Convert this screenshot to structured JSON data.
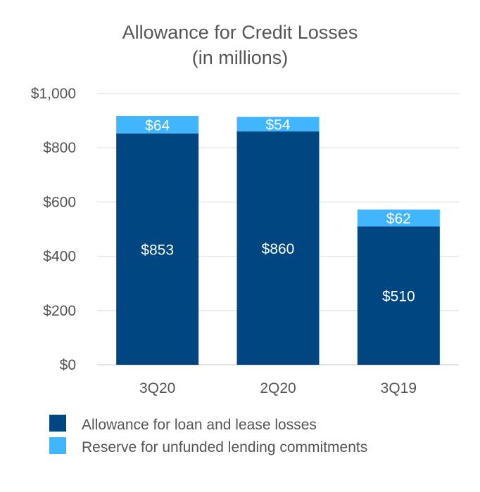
{
  "chart_data": {
    "type": "bar",
    "stacked": true,
    "title": [
      "Allowance for Credit Losses",
      "(in millions)"
    ],
    "categories": [
      "3Q20",
      "2Q20",
      "3Q19"
    ],
    "series": [
      {
        "name": "Allowance for loan and lease losses",
        "values": [
          853,
          860,
          510
        ],
        "labels": [
          "$853",
          "$860",
          "$510"
        ],
        "color": "#004680"
      },
      {
        "name": "Reserve for unfunded lending commitments",
        "values": [
          64,
          54,
          62
        ],
        "labels": [
          "$64",
          "$54",
          "$62"
        ],
        "color": "#41b6ff"
      }
    ],
    "ylim": [
      0,
      1000
    ],
    "yticks": [
      0,
      200,
      400,
      600,
      800,
      1000
    ],
    "ytick_labels": [
      "$0",
      "$200",
      "$400",
      "$600",
      "$800",
      "$1,000"
    ],
    "grid": true,
    "gridline_color": "#e6e6e6",
    "legend_position": "bottom"
  }
}
